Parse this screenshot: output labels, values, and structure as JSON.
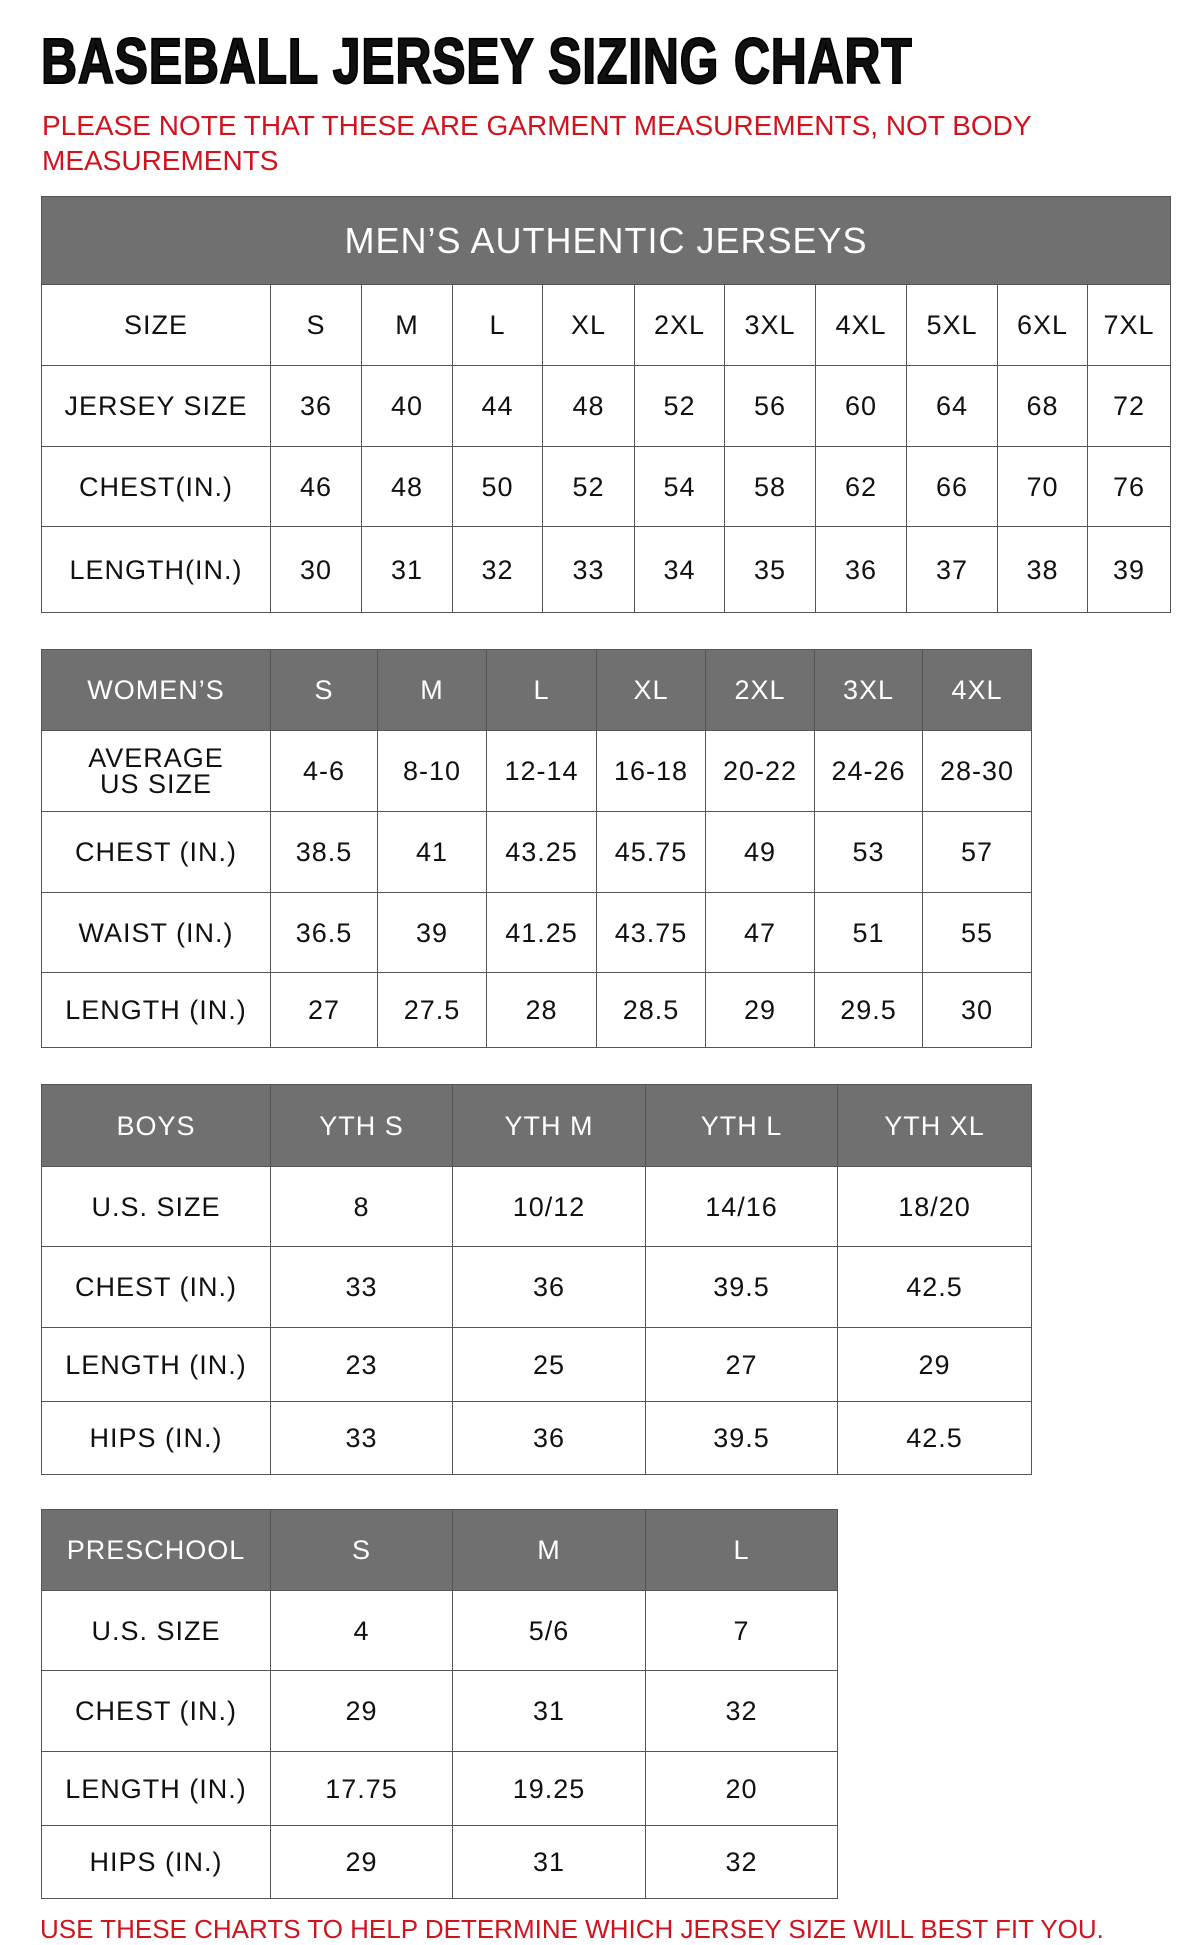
{
  "title": "BASEBALL JERSEY SIZING CHART",
  "note": "PLEASE NOTE THAT THESE ARE GARMENT MEASUREMENTS, NOT BODY MEASUREMENTS",
  "footer": "USE THESE CHARTS TO HELP DETERMINE WHICH JERSEY SIZE WILL BEST FIT YOU.",
  "colors": {
    "accent_red": "#d0141e",
    "header_gray": "#707070"
  },
  "tables": [
    {
      "id": "mens",
      "caption": "MEN’S AUTHENTIC JERSEYS",
      "header": [
        "SIZE",
        "S",
        "M",
        "L",
        "XL",
        "2XL",
        "3XL",
        "4XL",
        "5XL",
        "6XL",
        "7XL"
      ],
      "header_dark": false,
      "rows": [
        [
          "JERSEY SIZE",
          "36",
          "40",
          "44",
          "48",
          "52",
          "56",
          "60",
          "64",
          "68",
          "72"
        ],
        [
          "CHEST(IN.)",
          "46",
          "48",
          "50",
          "52",
          "54",
          "58",
          "62",
          "66",
          "70",
          "76"
        ],
        [
          "LENGTH(IN.)",
          "30",
          "31",
          "32",
          "33",
          "34",
          "35",
          "36",
          "37",
          "38",
          "39"
        ]
      ]
    },
    {
      "id": "womens",
      "header": [
        "WOMEN’S",
        "S",
        "M",
        "L",
        "XL",
        "2XL",
        "3XL",
        "4XL"
      ],
      "header_dark": true,
      "rows": [
        [
          "AVERAGE US SIZE",
          "4-6",
          "8-10",
          "12-14",
          "16-18",
          "20-22",
          "24-26",
          "28-30"
        ],
        [
          "CHEST (IN.)",
          "38.5",
          "41",
          "43.25",
          "45.75",
          "49",
          "53",
          "57"
        ],
        [
          "WAIST (IN.)",
          "36.5",
          "39",
          "41.25",
          "43.75",
          "47",
          "51",
          "55"
        ],
        [
          "LENGTH (IN.)",
          "27",
          "27.5",
          "28",
          "28.5",
          "29",
          "29.5",
          "30"
        ]
      ]
    },
    {
      "id": "boys",
      "header": [
        "BOYS",
        "YTH S",
        "YTH M",
        "YTH L",
        "YTH XL"
      ],
      "header_dark": true,
      "rows": [
        [
          "U.S. SIZE",
          "8",
          "10/12",
          "14/16",
          "18/20"
        ],
        [
          "CHEST (IN.)",
          "33",
          "36",
          "39.5",
          "42.5"
        ],
        [
          "LENGTH (IN.)",
          "23",
          "25",
          "27",
          "29"
        ],
        [
          "HIPS (IN.)",
          "33",
          "36",
          "39.5",
          "42.5"
        ]
      ]
    },
    {
      "id": "preschool",
      "header": [
        "PRESCHOOL",
        "S",
        "M",
        "L"
      ],
      "header_dark": true,
      "rows": [
        [
          "U.S. SIZE",
          "4",
          "5/6",
          "7"
        ],
        [
          "CHEST (IN.)",
          "29",
          "31",
          "32"
        ],
        [
          "LENGTH (IN.)",
          "17.75",
          "19.25",
          "20"
        ],
        [
          "HIPS (IN.)",
          "29",
          "31",
          "32"
        ]
      ]
    }
  ]
}
